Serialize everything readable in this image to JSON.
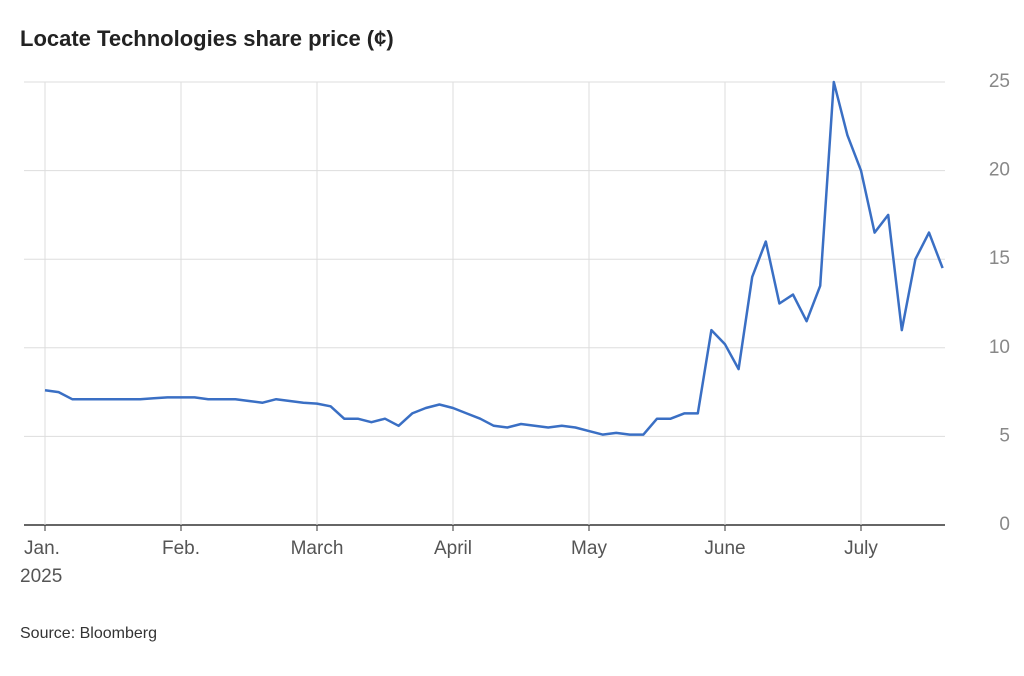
{
  "chart_data": {
    "type": "line",
    "title": "Locate Technologies share price (¢)",
    "source": "Source: Bloomberg",
    "x_year": "2025",
    "categories": [
      "Jan.",
      null,
      null,
      null,
      null,
      null,
      null,
      null,
      null,
      null,
      "Feb.",
      null,
      null,
      null,
      null,
      null,
      null,
      null,
      null,
      null,
      "March",
      null,
      null,
      null,
      null,
      null,
      null,
      null,
      null,
      null,
      "April",
      null,
      null,
      null,
      null,
      null,
      null,
      null,
      null,
      null,
      "May",
      null,
      null,
      null,
      null,
      null,
      null,
      null,
      null,
      null,
      "June",
      null,
      null,
      null,
      null,
      null,
      null,
      null,
      null,
      null,
      "July",
      null,
      null,
      null,
      null,
      null,
      null
    ],
    "series": [
      {
        "name": "Locate Technologies",
        "color": "#3a6fc4",
        "values": [
          7.6,
          7.5,
          7.1,
          7.1,
          7.1,
          7.1,
          7.1,
          7.1,
          7.15,
          7.2,
          7.2,
          7.2,
          7.1,
          7.1,
          7.1,
          7.0,
          6.9,
          7.1,
          7.0,
          6.9,
          6.85,
          6.7,
          6.0,
          6.0,
          5.8,
          6.0,
          5.6,
          6.3,
          6.6,
          6.8,
          6.6,
          6.3,
          6.0,
          5.6,
          5.5,
          5.7,
          5.6,
          5.5,
          5.6,
          5.5,
          5.3,
          5.1,
          5.2,
          5.1,
          5.1,
          6.0,
          6.0,
          6.3,
          6.3,
          11.0,
          10.2,
          8.8,
          14.0,
          16.0,
          12.5,
          13.0,
          11.5,
          13.5,
          25.0,
          22.0,
          20.0,
          16.5,
          17.5,
          11.0,
          15.0,
          16.5,
          14.5
        ]
      }
    ],
    "ylim": [
      0,
      25
    ],
    "yticks": [
      0,
      5,
      10,
      15,
      20,
      25
    ],
    "grid": true
  }
}
